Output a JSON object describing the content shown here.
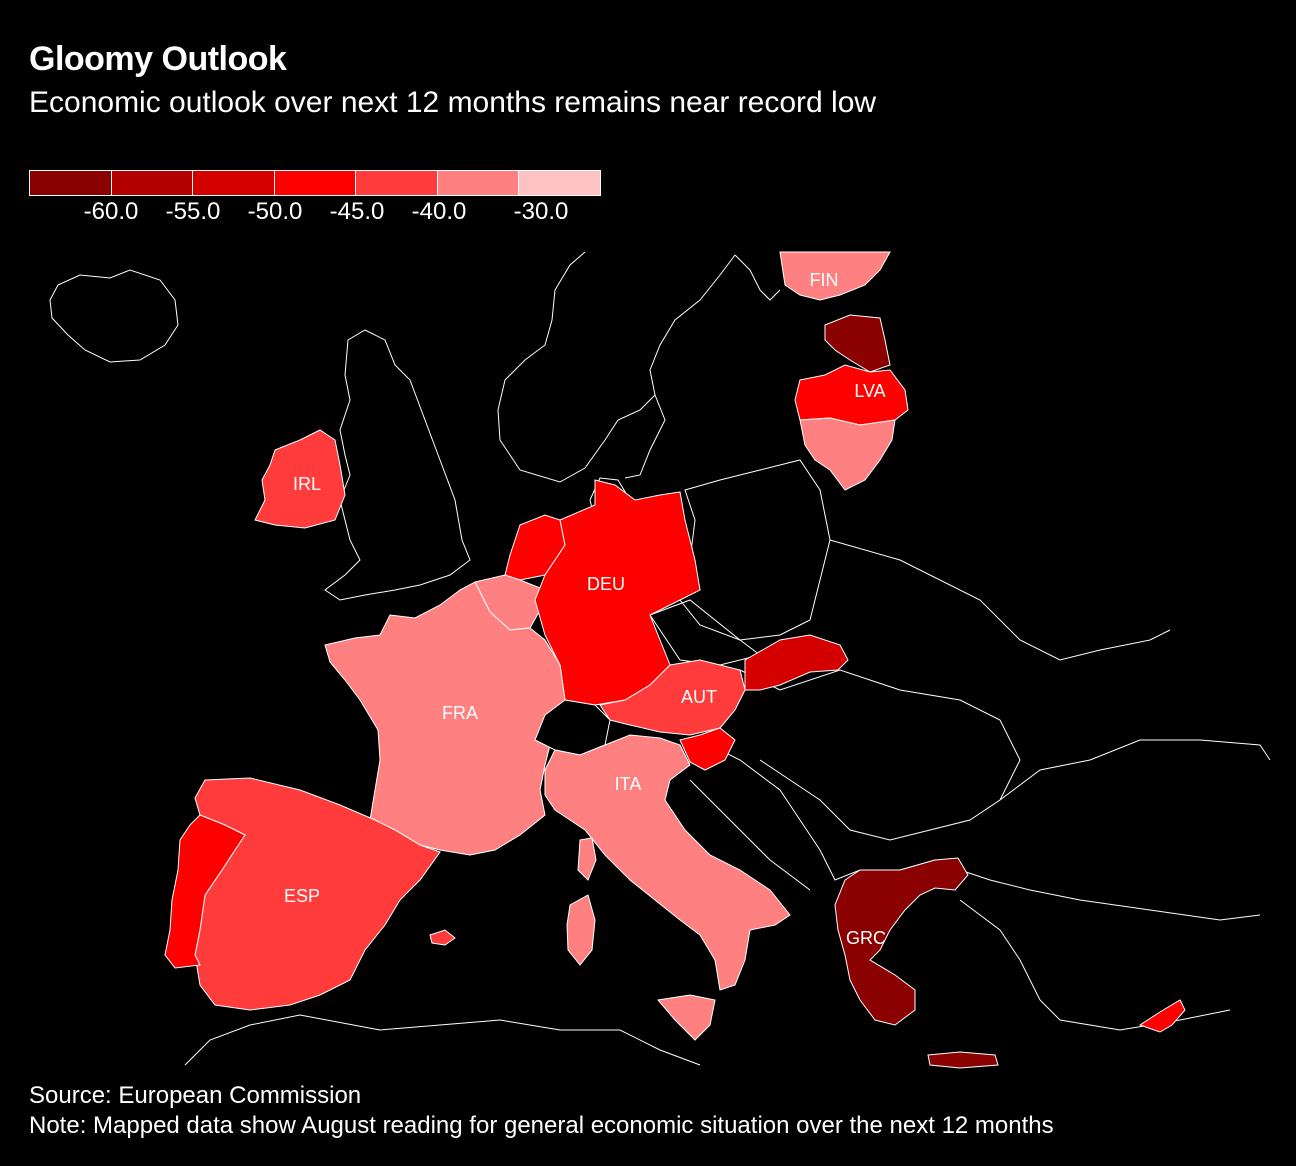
{
  "title": "Gloomy Outlook",
  "subtitle": "Economic outlook over next 12 months remains near record low",
  "legend": {
    "colors": [
      "#8b0000",
      "#b30000",
      "#d40000",
      "#ff0000",
      "#ff3b3b",
      "#ff8080",
      "#ffc2c2"
    ],
    "labels": [
      "-60.0",
      "-55.0",
      "-50.0",
      "-45.0",
      "-40.0",
      "-30.0"
    ]
  },
  "chart_data": {
    "type": "choropleth",
    "title": "Gloomy Outlook",
    "metric": "Economic outlook over next 12 months",
    "bins": [
      {
        "range": "< -60.0",
        "color": "#8b0000"
      },
      {
        "range": "-60.0 to -55.0",
        "color": "#b30000"
      },
      {
        "range": "-55.0 to -50.0",
        "color": "#d40000"
      },
      {
        "range": "-50.0 to -45.0",
        "color": "#ff0000"
      },
      {
        "range": "-45.0 to -40.0",
        "color": "#ff3b3b"
      },
      {
        "range": "-40.0 to -30.0",
        "color": "#ff8080"
      },
      {
        "range": "> -30.0",
        "color": "#ffc2c2"
      }
    ],
    "labeled_countries": [
      "FIN",
      "LVA",
      "IRL",
      "DEU",
      "FRA",
      "AUT",
      "ITA",
      "ESP",
      "GRC"
    ]
  },
  "map": {
    "countries": [
      {
        "code": "FIN",
        "label": "FIN",
        "color": "#ff8080"
      },
      {
        "code": "EST",
        "label": "",
        "color": "#8b0000"
      },
      {
        "code": "LVA",
        "label": "LVA",
        "color": "#ff0000"
      },
      {
        "code": "LTU",
        "label": "",
        "color": "#ff8080"
      },
      {
        "code": "IRL",
        "label": "IRL",
        "color": "#ff3b3b"
      },
      {
        "code": "NLD",
        "label": "",
        "color": "#ff0000"
      },
      {
        "code": "BEL",
        "label": "",
        "color": "#ff8080"
      },
      {
        "code": "DEU",
        "label": "DEU",
        "color": "#ff0000"
      },
      {
        "code": "FRA",
        "label": "FRA",
        "color": "#ff8080"
      },
      {
        "code": "AUT",
        "label": "AUT",
        "color": "#ff3b3b"
      },
      {
        "code": "SVK",
        "label": "",
        "color": "#d40000"
      },
      {
        "code": "SVN",
        "label": "",
        "color": "#ff0000"
      },
      {
        "code": "ITA",
        "label": "ITA",
        "color": "#ff8080"
      },
      {
        "code": "ESP",
        "label": "ESP",
        "color": "#ff3b3b"
      },
      {
        "code": "PRT",
        "label": "",
        "color": "#ff0000"
      },
      {
        "code": "GRC",
        "label": "GRC",
        "color": "#8b0000"
      },
      {
        "code": "CYP",
        "label": "",
        "color": "#ff0000"
      }
    ]
  },
  "source": "Source: European Commission",
  "note": "Note: Mapped data show August reading for general economic situation over the next 12 months"
}
